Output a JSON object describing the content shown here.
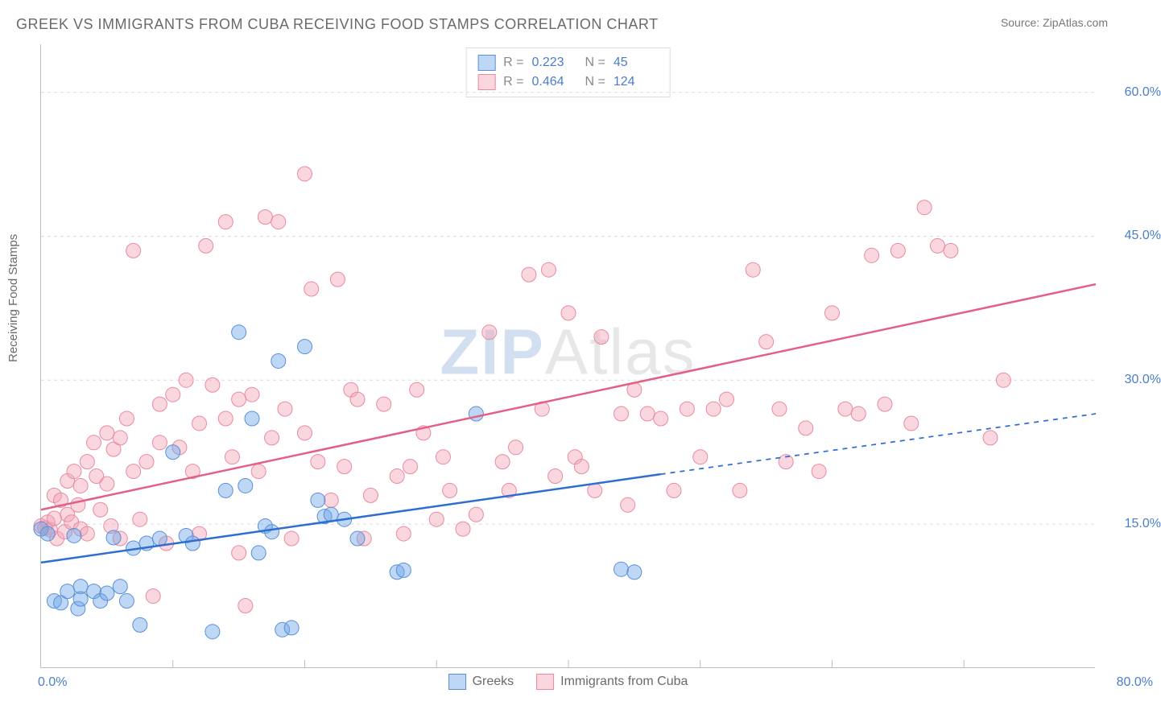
{
  "title": "GREEK VS IMMIGRANTS FROM CUBA RECEIVING FOOD STAMPS CORRELATION CHART",
  "source_prefix": "Source: ",
  "source_name": "ZipAtlas.com",
  "ylabel": "Receiving Food Stamps",
  "watermark_z": "ZIP",
  "watermark_rest": "Atlas",
  "chart": {
    "type": "scatter-with-regression",
    "background_color": "#ffffff",
    "axis_color": "#bdbdbd",
    "grid_color": "#dcdcdc",
    "grid_dash": "4 4",
    "xlim": [
      0,
      80
    ],
    "ylim": [
      0,
      65
    ],
    "x_tick_step": 10,
    "y_ticks": [
      15,
      30,
      45,
      60
    ],
    "y_tick_labels": [
      "15.0%",
      "30.0%",
      "45.0%",
      "60.0%"
    ],
    "x_tick_min_label": "0.0%",
    "x_tick_max_label": "80.0%",
    "tick_label_color": "#4a7ecc",
    "tick_label_fontsize": 16,
    "marker_radius": 9,
    "marker_opacity": 0.55,
    "line_width": 2.5,
    "series": [
      {
        "id": "greeks",
        "label": "Greeks",
        "color": "#6fa6e8",
        "fill": "rgba(111,166,232,0.45)",
        "stroke": "#5a8fd6",
        "line_color": "#2f6ed1",
        "R": "0.223",
        "N": "45",
        "regression": {
          "x1": 0,
          "y1": 11,
          "x2_solid": 47,
          "y2_solid": 20.2,
          "x2": 80,
          "y2": 26.5
        },
        "points": [
          [
            0,
            14.5
          ],
          [
            0.5,
            14
          ],
          [
            1,
            7
          ],
          [
            1.5,
            6.8
          ],
          [
            2,
            8
          ],
          [
            2.5,
            13.8
          ],
          [
            2.8,
            6.2
          ],
          [
            3,
            8.5
          ],
          [
            3,
            7.2
          ],
          [
            4,
            8
          ],
          [
            4.5,
            7
          ],
          [
            5,
            7.8
          ],
          [
            5.5,
            13.6
          ],
          [
            6,
            8.5
          ],
          [
            6.5,
            7
          ],
          [
            7,
            12.5
          ],
          [
            7.5,
            4.5
          ],
          [
            8,
            13
          ],
          [
            9,
            13.5
          ],
          [
            10,
            22.5
          ],
          [
            11,
            13.8
          ],
          [
            11.5,
            13
          ],
          [
            13,
            3.8
          ],
          [
            14,
            18.5
          ],
          [
            15,
            35
          ],
          [
            15.5,
            19
          ],
          [
            16,
            26
          ],
          [
            16.5,
            12
          ],
          [
            17,
            14.8
          ],
          [
            17.5,
            14.2
          ],
          [
            18,
            32
          ],
          [
            18.3,
            4
          ],
          [
            19,
            4.2
          ],
          [
            20,
            33.5
          ],
          [
            21,
            17.5
          ],
          [
            21.5,
            15.8
          ],
          [
            22,
            16
          ],
          [
            23,
            15.5
          ],
          [
            24,
            13.5
          ],
          [
            27,
            10
          ],
          [
            27.5,
            10.2
          ],
          [
            33,
            26.5
          ],
          [
            44,
            10.3
          ],
          [
            45,
            10
          ]
        ]
      },
      {
        "id": "cuba",
        "label": "Immigrants from Cuba",
        "color": "#f5a3b5",
        "fill": "rgba(245,163,181,0.45)",
        "stroke": "#e88aa0",
        "line_color": "#e35f85",
        "R": "0.464",
        "N": "124",
        "regression": {
          "x1": 0,
          "y1": 16.5,
          "x2_solid": 80,
          "y2_solid": 40,
          "x2": 80,
          "y2": 40
        },
        "points": [
          [
            0,
            14.8
          ],
          [
            0.3,
            14.6
          ],
          [
            0.5,
            15.2
          ],
          [
            0.7,
            14.4
          ],
          [
            1,
            15.6
          ],
          [
            1,
            18
          ],
          [
            1.2,
            13.5
          ],
          [
            1.5,
            17.5
          ],
          [
            1.8,
            14.2
          ],
          [
            2,
            19.5
          ],
          [
            2,
            16
          ],
          [
            2.3,
            15.2
          ],
          [
            2.5,
            20.5
          ],
          [
            2.8,
            17
          ],
          [
            3,
            14.5
          ],
          [
            3,
            19
          ],
          [
            3.5,
            21.5
          ],
          [
            3.5,
            14
          ],
          [
            4,
            23.5
          ],
          [
            4.2,
            20
          ],
          [
            4.5,
            16.5
          ],
          [
            5,
            24.5
          ],
          [
            5,
            19.2
          ],
          [
            5.3,
            14.8
          ],
          [
            5.5,
            22.8
          ],
          [
            6,
            24
          ],
          [
            6,
            13.5
          ],
          [
            6.5,
            26
          ],
          [
            7,
            20.5
          ],
          [
            7,
            43.5
          ],
          [
            7.5,
            15.5
          ],
          [
            8,
            21.5
          ],
          [
            8.5,
            7.5
          ],
          [
            9,
            23.5
          ],
          [
            9,
            27.5
          ],
          [
            9.5,
            13
          ],
          [
            10,
            28.5
          ],
          [
            10.5,
            23
          ],
          [
            11,
            30
          ],
          [
            11.5,
            20.5
          ],
          [
            12,
            25.5
          ],
          [
            12,
            14
          ],
          [
            12.5,
            44
          ],
          [
            13,
            29.5
          ],
          [
            14,
            26
          ],
          [
            14,
            46.5
          ],
          [
            14.5,
            22
          ],
          [
            15,
            28
          ],
          [
            15,
            12
          ],
          [
            15.5,
            6.5
          ],
          [
            16,
            28.5
          ],
          [
            16.5,
            20.5
          ],
          [
            17,
            47
          ],
          [
            17.5,
            24
          ],
          [
            18,
            46.5
          ],
          [
            18.5,
            27
          ],
          [
            19,
            13.5
          ],
          [
            20,
            24.5
          ],
          [
            20,
            51.5
          ],
          [
            20.5,
            39.5
          ],
          [
            21,
            21.5
          ],
          [
            22,
            17.5
          ],
          [
            22.5,
            40.5
          ],
          [
            23,
            21
          ],
          [
            23.5,
            29
          ],
          [
            24,
            28
          ],
          [
            24.5,
            13.5
          ],
          [
            25,
            18
          ],
          [
            26,
            27.5
          ],
          [
            27,
            20
          ],
          [
            27.5,
            14
          ],
          [
            28,
            21
          ],
          [
            28.5,
            29
          ],
          [
            29,
            24.5
          ],
          [
            30,
            15.5
          ],
          [
            30.5,
            22
          ],
          [
            31,
            18.5
          ],
          [
            32,
            14.5
          ],
          [
            33,
            16
          ],
          [
            34,
            35
          ],
          [
            35,
            21.5
          ],
          [
            35.5,
            18.5
          ],
          [
            36,
            23
          ],
          [
            37,
            41
          ],
          [
            38,
            27
          ],
          [
            38.5,
            41.5
          ],
          [
            39,
            20
          ],
          [
            40,
            37
          ],
          [
            40.5,
            22
          ],
          [
            41,
            21
          ],
          [
            42,
            18.5
          ],
          [
            42.5,
            34.5
          ],
          [
            44,
            26.5
          ],
          [
            44.5,
            17
          ],
          [
            45,
            29
          ],
          [
            46,
            26.5
          ],
          [
            47,
            26
          ],
          [
            48,
            18.5
          ],
          [
            49,
            27
          ],
          [
            50,
            22
          ],
          [
            51,
            27
          ],
          [
            52,
            28
          ],
          [
            53,
            18.5
          ],
          [
            54,
            41.5
          ],
          [
            55,
            34
          ],
          [
            56,
            27
          ],
          [
            56.5,
            21.5
          ],
          [
            58,
            25
          ],
          [
            59,
            20.5
          ],
          [
            60,
            37
          ],
          [
            61,
            27
          ],
          [
            62,
            26.5
          ],
          [
            63,
            43
          ],
          [
            64,
            27.5
          ],
          [
            65,
            43.5
          ],
          [
            66,
            25.5
          ],
          [
            67,
            48
          ],
          [
            68,
            44
          ],
          [
            69,
            43.5
          ],
          [
            72,
            24
          ],
          [
            73,
            30
          ]
        ]
      }
    ]
  },
  "legend_labels": {
    "R": "R =",
    "N": "N ="
  }
}
